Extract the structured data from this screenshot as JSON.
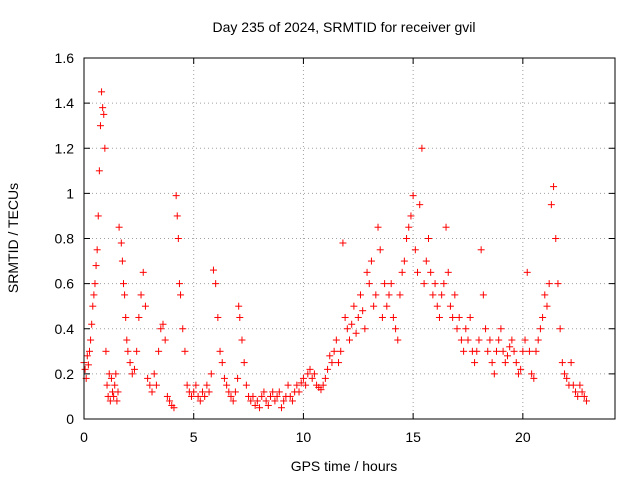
{
  "chart_data": {
    "type": "scatter",
    "title": "Day 235 of 2024, SRMTID for receiver gvil",
    "xlabel": "GPS time / hours",
    "ylabel": "SRMTID / TECUs",
    "xlim": [
      0,
      24.2
    ],
    "ylim": [
      0,
      1.6
    ],
    "xticks": [
      0,
      5,
      10,
      15,
      20
    ],
    "xtick_labels": [
      "0",
      "5",
      "10",
      "15",
      "20"
    ],
    "yticks": [
      0,
      0.2,
      0.4,
      0.6,
      0.8,
      1,
      1.2,
      1.4,
      1.6
    ],
    "ytick_labels": [
      "0",
      "0.2",
      "0.4",
      "0.6",
      "0.8",
      "1",
      "1.2",
      "1.4",
      "1.6"
    ],
    "grid": true,
    "marker": "plus",
    "marker_color": "#ff0000",
    "series": [
      {
        "name": "gvil",
        "points": [
          [
            0.0,
            0.25
          ],
          [
            0.05,
            0.22
          ],
          [
            0.1,
            0.18
          ],
          [
            0.15,
            0.28
          ],
          [
            0.2,
            0.24
          ],
          [
            0.25,
            0.3
          ],
          [
            0.3,
            0.35
          ],
          [
            0.35,
            0.42
          ],
          [
            0.4,
            0.5
          ],
          [
            0.45,
            0.55
          ],
          [
            0.5,
            0.6
          ],
          [
            0.55,
            0.68
          ],
          [
            0.6,
            0.75
          ],
          [
            0.65,
            0.9
          ],
          [
            0.7,
            1.1
          ],
          [
            0.75,
            1.3
          ],
          [
            0.8,
            1.45
          ],
          [
            0.85,
            1.38
          ],
          [
            0.9,
            1.35
          ],
          [
            0.95,
            1.2
          ],
          [
            1.0,
            0.3
          ],
          [
            1.05,
            0.15
          ],
          [
            1.1,
            0.1
          ],
          [
            1.15,
            0.2
          ],
          [
            1.2,
            0.08
          ],
          [
            1.25,
            0.18
          ],
          [
            1.3,
            0.12
          ],
          [
            1.35,
            0.1
          ],
          [
            1.4,
            0.15
          ],
          [
            1.45,
            0.2
          ],
          [
            1.5,
            0.08
          ],
          [
            1.55,
            0.12
          ],
          [
            1.6,
            0.85
          ],
          [
            1.7,
            0.78
          ],
          [
            1.75,
            0.7
          ],
          [
            1.8,
            0.6
          ],
          [
            1.85,
            0.55
          ],
          [
            1.9,
            0.45
          ],
          [
            1.95,
            0.35
          ],
          [
            2.0,
            0.3
          ],
          [
            2.1,
            0.25
          ],
          [
            2.2,
            0.2
          ],
          [
            2.3,
            0.22
          ],
          [
            2.4,
            0.3
          ],
          [
            2.5,
            0.45
          ],
          [
            2.6,
            0.55
          ],
          [
            2.7,
            0.65
          ],
          [
            2.8,
            0.5
          ],
          [
            2.9,
            0.18
          ],
          [
            3.0,
            0.15
          ],
          [
            3.1,
            0.12
          ],
          [
            3.2,
            0.2
          ],
          [
            3.3,
            0.15
          ],
          [
            3.4,
            0.3
          ],
          [
            3.5,
            0.4
          ],
          [
            3.6,
            0.42
          ],
          [
            3.7,
            0.35
          ],
          [
            3.8,
            0.1
          ],
          [
            3.9,
            0.08
          ],
          [
            4.0,
            0.06
          ],
          [
            4.1,
            0.05
          ],
          [
            4.2,
            0.99
          ],
          [
            4.25,
            0.9
          ],
          [
            4.3,
            0.8
          ],
          [
            4.35,
            0.6
          ],
          [
            4.4,
            0.55
          ],
          [
            4.5,
            0.4
          ],
          [
            4.6,
            0.3
          ],
          [
            4.7,
            0.15
          ],
          [
            4.8,
            0.12
          ],
          [
            4.9,
            0.1
          ],
          [
            5.0,
            0.12
          ],
          [
            5.1,
            0.15
          ],
          [
            5.2,
            0.1
          ],
          [
            5.3,
            0.08
          ],
          [
            5.4,
            0.12
          ],
          [
            5.5,
            0.1
          ],
          [
            5.6,
            0.15
          ],
          [
            5.7,
            0.12
          ],
          [
            5.8,
            0.2
          ],
          [
            5.9,
            0.66
          ],
          [
            6.0,
            0.6
          ],
          [
            6.1,
            0.45
          ],
          [
            6.2,
            0.3
          ],
          [
            6.3,
            0.25
          ],
          [
            6.4,
            0.18
          ],
          [
            6.5,
            0.15
          ],
          [
            6.6,
            0.12
          ],
          [
            6.7,
            0.1
          ],
          [
            6.8,
            0.08
          ],
          [
            6.9,
            0.12
          ],
          [
            7.0,
            0.18
          ],
          [
            7.05,
            0.5
          ],
          [
            7.1,
            0.45
          ],
          [
            7.2,
            0.35
          ],
          [
            7.3,
            0.25
          ],
          [
            7.4,
            0.15
          ],
          [
            7.5,
            0.1
          ],
          [
            7.6,
            0.08
          ],
          [
            7.7,
            0.1
          ],
          [
            7.8,
            0.06
          ],
          [
            7.9,
            0.08
          ],
          [
            8.0,
            0.05
          ],
          [
            8.1,
            0.1
          ],
          [
            8.2,
            0.12
          ],
          [
            8.3,
            0.08
          ],
          [
            8.4,
            0.06
          ],
          [
            8.5,
            0.1
          ],
          [
            8.6,
            0.12
          ],
          [
            8.7,
            0.08
          ],
          [
            8.8,
            0.1
          ],
          [
            8.9,
            0.12
          ],
          [
            9.0,
            0.05
          ],
          [
            9.1,
            0.08
          ],
          [
            9.2,
            0.1
          ],
          [
            9.3,
            0.15
          ],
          [
            9.4,
            0.1
          ],
          [
            9.5,
            0.08
          ],
          [
            9.6,
            0.12
          ],
          [
            9.7,
            0.15
          ],
          [
            9.8,
            0.12
          ],
          [
            9.9,
            0.16
          ],
          [
            10.0,
            0.18
          ],
          [
            10.1,
            0.15
          ],
          [
            10.2,
            0.2
          ],
          [
            10.3,
            0.22
          ],
          [
            10.4,
            0.18
          ],
          [
            10.5,
            0.2
          ],
          [
            10.6,
            0.15
          ],
          [
            10.7,
            0.14
          ],
          [
            10.8,
            0.13
          ],
          [
            10.9,
            0.15
          ],
          [
            11.0,
            0.18
          ],
          [
            11.1,
            0.22
          ],
          [
            11.2,
            0.28
          ],
          [
            11.3,
            0.25
          ],
          [
            11.4,
            0.3
          ],
          [
            11.5,
            0.35
          ],
          [
            11.6,
            0.25
          ],
          [
            11.7,
            0.3
          ],
          [
            11.8,
            0.78
          ],
          [
            11.9,
            0.45
          ],
          [
            12.0,
            0.4
          ],
          [
            12.1,
            0.35
          ],
          [
            12.2,
            0.42
          ],
          [
            12.3,
            0.5
          ],
          [
            12.4,
            0.38
          ],
          [
            12.5,
            0.45
          ],
          [
            12.6,
            0.55
          ],
          [
            12.7,
            0.48
          ],
          [
            12.8,
            0.4
          ],
          [
            12.9,
            0.65
          ],
          [
            13.0,
            0.6
          ],
          [
            13.1,
            0.7
          ],
          [
            13.2,
            0.5
          ],
          [
            13.3,
            0.55
          ],
          [
            13.4,
            0.85
          ],
          [
            13.5,
            0.75
          ],
          [
            13.6,
            0.45
          ],
          [
            13.7,
            0.6
          ],
          [
            13.8,
            0.5
          ],
          [
            13.9,
            0.55
          ],
          [
            14.0,
            0.6
          ],
          [
            14.1,
            0.45
          ],
          [
            14.2,
            0.4
          ],
          [
            14.3,
            0.35
          ],
          [
            14.4,
            0.55
          ],
          [
            14.5,
            0.65
          ],
          [
            14.6,
            0.7
          ],
          [
            14.7,
            0.8
          ],
          [
            14.8,
            0.85
          ],
          [
            14.9,
            0.9
          ],
          [
            15.0,
            0.99
          ],
          [
            15.1,
            0.75
          ],
          [
            15.2,
            0.65
          ],
          [
            15.3,
            0.95
          ],
          [
            15.4,
            1.2
          ],
          [
            15.5,
            0.6
          ],
          [
            15.6,
            0.7
          ],
          [
            15.7,
            0.8
          ],
          [
            15.8,
            0.65
          ],
          [
            15.9,
            0.55
          ],
          [
            16.0,
            0.6
          ],
          [
            16.1,
            0.5
          ],
          [
            16.2,
            0.45
          ],
          [
            16.3,
            0.55
          ],
          [
            16.4,
            0.6
          ],
          [
            16.5,
            0.85
          ],
          [
            16.6,
            0.65
          ],
          [
            16.7,
            0.5
          ],
          [
            16.8,
            0.45
          ],
          [
            16.9,
            0.55
          ],
          [
            17.0,
            0.4
          ],
          [
            17.1,
            0.45
          ],
          [
            17.2,
            0.35
          ],
          [
            17.3,
            0.3
          ],
          [
            17.4,
            0.4
          ],
          [
            17.5,
            0.35
          ],
          [
            17.6,
            0.45
          ],
          [
            17.7,
            0.3
          ],
          [
            17.8,
            0.25
          ],
          [
            17.9,
            0.3
          ],
          [
            18.0,
            0.35
          ],
          [
            18.1,
            0.75
          ],
          [
            18.2,
            0.55
          ],
          [
            18.3,
            0.4
          ],
          [
            18.4,
            0.3
          ],
          [
            18.5,
            0.35
          ],
          [
            18.6,
            0.25
          ],
          [
            18.7,
            0.2
          ],
          [
            18.8,
            0.3
          ],
          [
            18.9,
            0.35
          ],
          [
            19.0,
            0.4
          ],
          [
            19.1,
            0.3
          ],
          [
            19.2,
            0.25
          ],
          [
            19.3,
            0.28
          ],
          [
            19.4,
            0.32
          ],
          [
            19.5,
            0.35
          ],
          [
            19.6,
            0.3
          ],
          [
            19.7,
            0.25
          ],
          [
            19.8,
            0.2
          ],
          [
            19.9,
            0.22
          ],
          [
            20.0,
            0.3
          ],
          [
            20.1,
            0.35
          ],
          [
            20.2,
            0.65
          ],
          [
            20.3,
            0.3
          ],
          [
            20.4,
            0.2
          ],
          [
            20.5,
            0.18
          ],
          [
            20.6,
            0.3
          ],
          [
            20.7,
            0.35
          ],
          [
            20.8,
            0.4
          ],
          [
            20.9,
            0.45
          ],
          [
            21.0,
            0.55
          ],
          [
            21.1,
            0.5
          ],
          [
            21.2,
            0.6
          ],
          [
            21.3,
            0.95
          ],
          [
            21.4,
            1.03
          ],
          [
            21.5,
            0.8
          ],
          [
            21.6,
            0.6
          ],
          [
            21.7,
            0.4
          ],
          [
            21.8,
            0.25
          ],
          [
            21.9,
            0.2
          ],
          [
            22.0,
            0.18
          ],
          [
            22.1,
            0.15
          ],
          [
            22.2,
            0.25
          ],
          [
            22.3,
            0.15
          ],
          [
            22.4,
            0.12
          ],
          [
            22.5,
            0.1
          ],
          [
            22.6,
            0.15
          ],
          [
            22.7,
            0.12
          ],
          [
            22.8,
            0.1
          ],
          [
            22.9,
            0.08
          ]
        ]
      }
    ]
  }
}
